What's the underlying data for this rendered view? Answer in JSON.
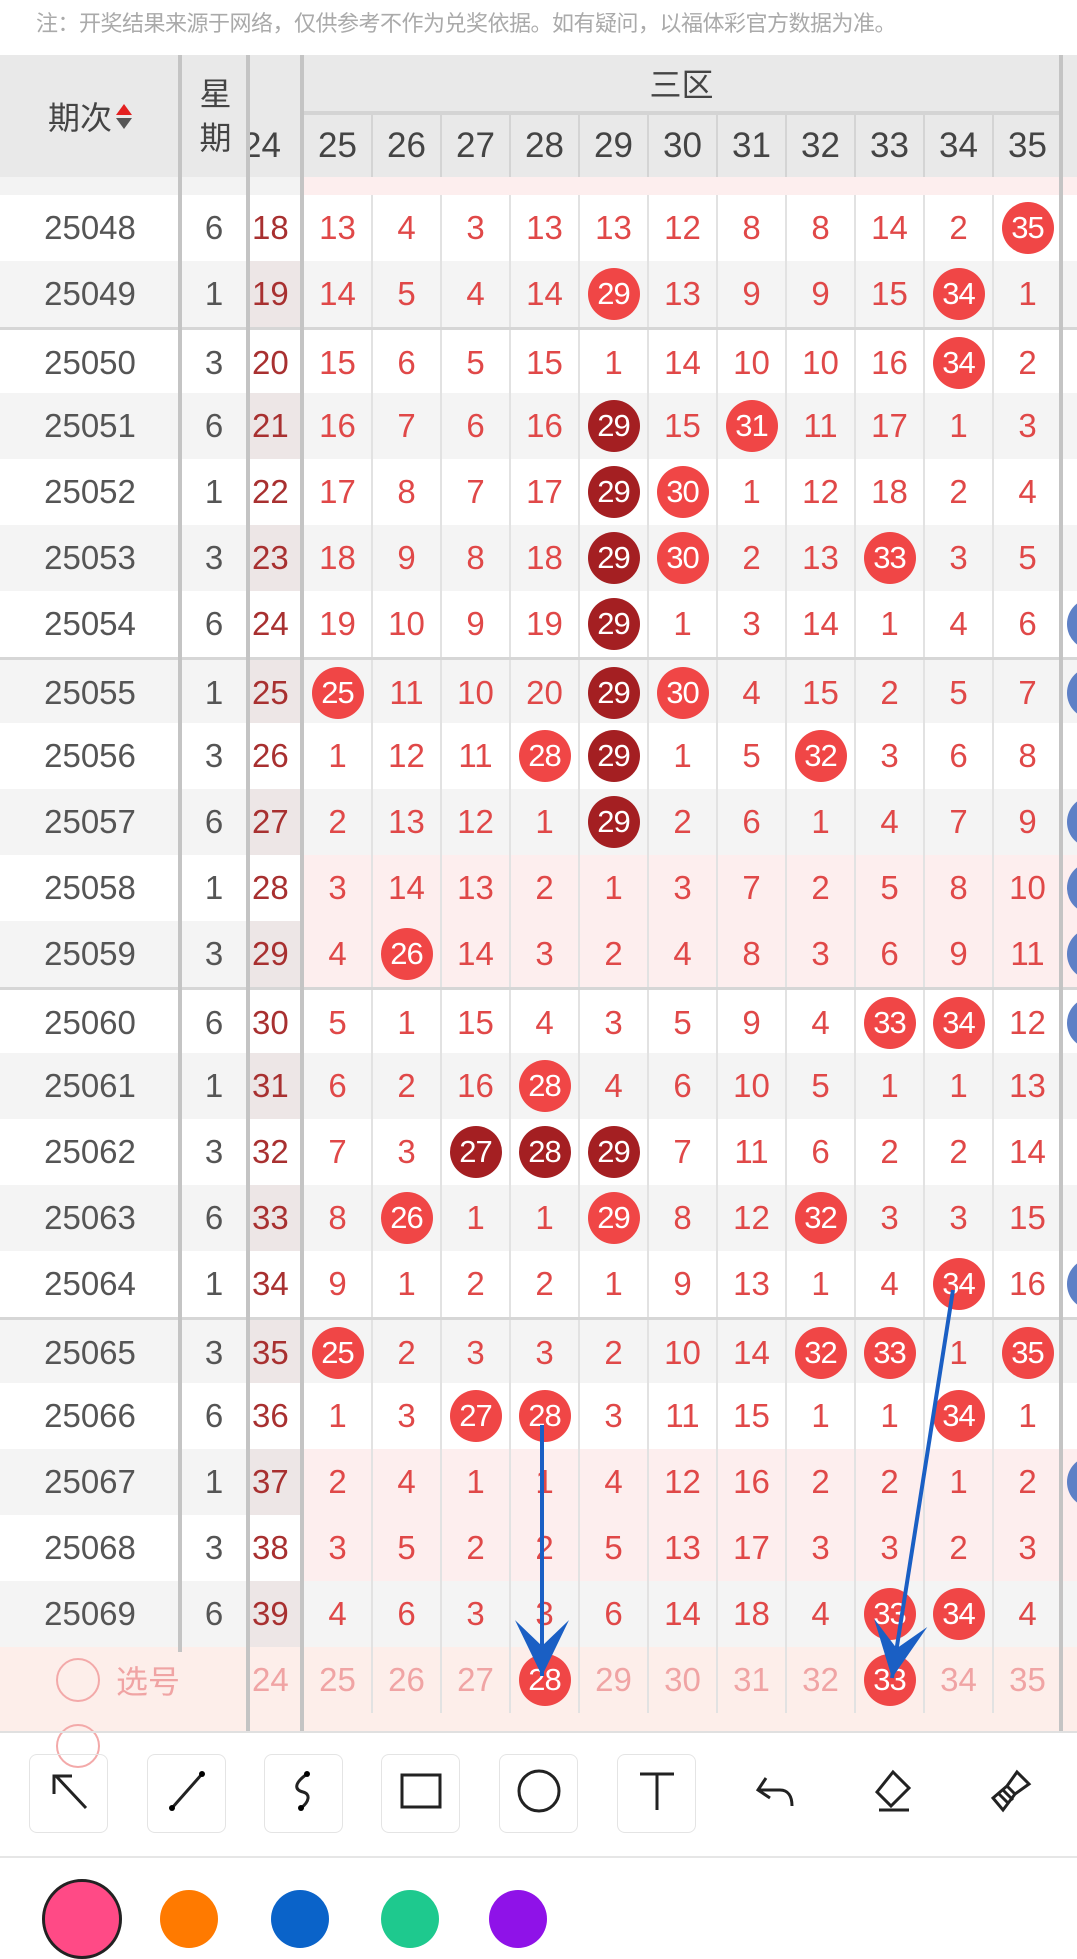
{
  "notice": "注：开奖结果来源于网络，仅供参考不作为兑奖依据。如有疑问，以福体彩官方数据为准。",
  "header": {
    "period_label": "期次",
    "weekday_label_top": "星",
    "weekday_label_bottom": "期",
    "zone_label": "三区",
    "columns": [
      "24",
      "25",
      "26",
      "27",
      "28",
      "29",
      "30",
      "31",
      "32",
      "33",
      "34",
      "35"
    ]
  },
  "rows": [
    {
      "period": "25048",
      "weekday": "6",
      "cells": [
        "18",
        "13",
        "4",
        "3",
        "13",
        "13",
        "12",
        "8",
        "8",
        "14",
        "2",
        "35"
      ],
      "balls": {
        "11": "red"
      }
    },
    {
      "period": "25049",
      "weekday": "1",
      "cells": [
        "19",
        "14",
        "5",
        "4",
        "14",
        "29",
        "13",
        "9",
        "9",
        "15",
        "34",
        "1"
      ],
      "balls": {
        "5": "red",
        "10": "red"
      }
    },
    {
      "period": "25050",
      "weekday": "3",
      "cells": [
        "20",
        "15",
        "6",
        "5",
        "15",
        "1",
        "14",
        "10",
        "10",
        "16",
        "34",
        "2"
      ],
      "balls": {
        "10": "red"
      }
    },
    {
      "period": "25051",
      "weekday": "6",
      "cells": [
        "21",
        "16",
        "7",
        "6",
        "16",
        "29",
        "15",
        "31",
        "11",
        "17",
        "1",
        "3"
      ],
      "balls": {
        "5": "dark",
        "7": "red"
      }
    },
    {
      "period": "25052",
      "weekday": "1",
      "cells": [
        "22",
        "17",
        "8",
        "7",
        "17",
        "29",
        "30",
        "1",
        "12",
        "18",
        "2",
        "4"
      ],
      "balls": {
        "5": "dark",
        "6": "red"
      }
    },
    {
      "period": "25053",
      "weekday": "3",
      "cells": [
        "23",
        "18",
        "9",
        "8",
        "18",
        "29",
        "30",
        "2",
        "13",
        "33",
        "3",
        "5"
      ],
      "balls": {
        "5": "dark",
        "6": "red",
        "9": "red"
      }
    },
    {
      "period": "25054",
      "weekday": "6",
      "cells": [
        "24",
        "19",
        "10",
        "9",
        "19",
        "29",
        "1",
        "3",
        "14",
        "1",
        "4",
        "6"
      ],
      "balls": {
        "5": "dark"
      },
      "edge_ball": true
    },
    {
      "period": "25055",
      "weekday": "1",
      "cells": [
        "25",
        "25",
        "11",
        "10",
        "20",
        "29",
        "30",
        "4",
        "15",
        "2",
        "5",
        "7"
      ],
      "balls": {
        "1": "red",
        "5": "dark",
        "6": "red"
      },
      "edge_ball": true
    },
    {
      "period": "25056",
      "weekday": "3",
      "cells": [
        "26",
        "1",
        "12",
        "11",
        "28",
        "29",
        "1",
        "5",
        "32",
        "3",
        "6",
        "8"
      ],
      "balls": {
        "4": "red",
        "5": "dark",
        "8": "red"
      }
    },
    {
      "period": "25057",
      "weekday": "6",
      "cells": [
        "27",
        "2",
        "13",
        "12",
        "1",
        "29",
        "2",
        "6",
        "1",
        "4",
        "7",
        "9"
      ],
      "balls": {
        "5": "dark"
      },
      "edge_ball": true
    },
    {
      "period": "25058",
      "weekday": "1",
      "cells": [
        "28",
        "3",
        "14",
        "13",
        "2",
        "1",
        "3",
        "7",
        "2",
        "5",
        "8",
        "10"
      ],
      "balls": {},
      "pink": true,
      "edge_ball": true
    },
    {
      "period": "25059",
      "weekday": "3",
      "cells": [
        "29",
        "4",
        "26",
        "14",
        "3",
        "2",
        "4",
        "8",
        "3",
        "6",
        "9",
        "11"
      ],
      "balls": {
        "2": "red"
      },
      "pink": true,
      "edge_ball": true
    },
    {
      "period": "25060",
      "weekday": "6",
      "cells": [
        "30",
        "5",
        "1",
        "15",
        "4",
        "3",
        "5",
        "9",
        "4",
        "33",
        "34",
        "12"
      ],
      "balls": {
        "9": "red",
        "10": "red"
      },
      "edge_ball": true
    },
    {
      "period": "25061",
      "weekday": "1",
      "cells": [
        "31",
        "6",
        "2",
        "16",
        "28",
        "4",
        "6",
        "10",
        "5",
        "1",
        "1",
        "13"
      ],
      "balls": {
        "4": "red"
      }
    },
    {
      "period": "25062",
      "weekday": "3",
      "cells": [
        "32",
        "7",
        "3",
        "27",
        "28",
        "29",
        "7",
        "11",
        "6",
        "2",
        "2",
        "14"
      ],
      "balls": {
        "3": "dark",
        "4": "dark",
        "5": "dark"
      }
    },
    {
      "period": "25063",
      "weekday": "6",
      "cells": [
        "33",
        "8",
        "26",
        "1",
        "1",
        "29",
        "8",
        "12",
        "32",
        "3",
        "3",
        "15"
      ],
      "balls": {
        "2": "red",
        "5": "red",
        "8": "red"
      }
    },
    {
      "period": "25064",
      "weekday": "1",
      "cells": [
        "34",
        "9",
        "1",
        "2",
        "2",
        "1",
        "9",
        "13",
        "1",
        "4",
        "34",
        "16"
      ],
      "balls": {
        "10": "red"
      },
      "edge_ball": true
    },
    {
      "period": "25065",
      "weekday": "3",
      "cells": [
        "35",
        "25",
        "2",
        "3",
        "3",
        "2",
        "10",
        "14",
        "32",
        "33",
        "1",
        "35"
      ],
      "balls": {
        "1": "red",
        "8": "red",
        "9": "red",
        "11": "red"
      }
    },
    {
      "period": "25066",
      "weekday": "6",
      "cells": [
        "36",
        "1",
        "3",
        "27",
        "28",
        "3",
        "11",
        "15",
        "1",
        "1",
        "34",
        "1"
      ],
      "balls": {
        "3": "red",
        "4": "red",
        "10": "red"
      }
    },
    {
      "period": "25067",
      "weekday": "1",
      "cells": [
        "37",
        "2",
        "4",
        "1",
        "1",
        "4",
        "12",
        "16",
        "2",
        "2",
        "1",
        "2"
      ],
      "balls": {},
      "pink": true,
      "edge_ball": true
    },
    {
      "period": "25068",
      "weekday": "3",
      "cells": [
        "38",
        "3",
        "5",
        "2",
        "2",
        "5",
        "13",
        "17",
        "3",
        "3",
        "2",
        "3"
      ],
      "balls": {},
      "pink": true
    },
    {
      "period": "25069",
      "weekday": "6",
      "cells": [
        "39",
        "4",
        "6",
        "3",
        "3",
        "6",
        "14",
        "18",
        "4",
        "33",
        "34",
        "4"
      ],
      "balls": {
        "9": "red",
        "10": "red"
      }
    }
  ],
  "pick_row": {
    "label": "选号",
    "numbers": [
      "24",
      "25",
      "26",
      "27",
      "28",
      "29",
      "30",
      "31",
      "32",
      "33",
      "34",
      "35"
    ],
    "selected": {
      "4": "red",
      "9": "red"
    }
  },
  "toolbar": {
    "tools": [
      "arrow-tool",
      "line-tool",
      "freehand-tool",
      "rectangle-tool",
      "circle-tool",
      "text-tool",
      "undo",
      "eraser",
      "clear-all"
    ],
    "text_tool_glyph": "T"
  },
  "palette": {
    "colors": [
      "#ff4a86",
      "#ff7a00",
      "#0a63c9",
      "#1ec98e",
      "#8f12e8"
    ],
    "selected_index": 0
  },
  "annotation_color": "#1a5fc4"
}
